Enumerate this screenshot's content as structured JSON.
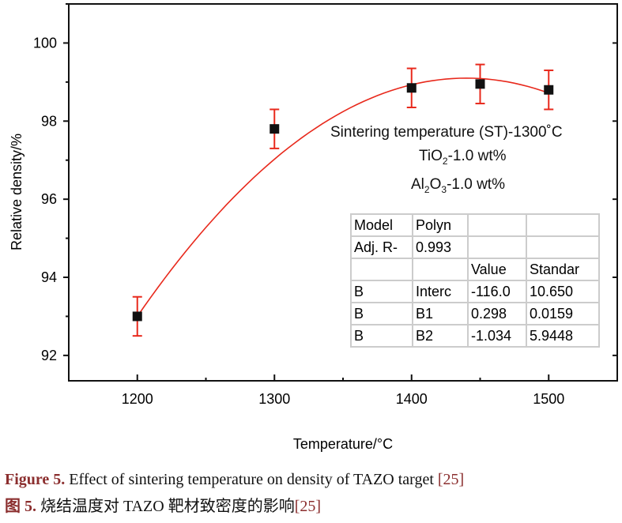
{
  "chart_data": {
    "type": "scatter",
    "xlabel": "Temperature/°C",
    "ylabel": "Relative density/%",
    "xlim": [
      1150,
      1550
    ],
    "ylim": [
      91.35,
      101
    ],
    "xticks": [
      1200,
      1300,
      1400,
      1500
    ],
    "yticks": [
      92,
      94,
      96,
      98,
      100
    ],
    "grid": false,
    "points": [
      {
        "x": 1200,
        "y": 93.0,
        "err": 0.5
      },
      {
        "x": 1300,
        "y": 97.8,
        "err": 0.5
      },
      {
        "x": 1400,
        "y": 98.85,
        "err": 0.5
      },
      {
        "x": 1450,
        "y": 98.95,
        "err": 0.5
      },
      {
        "x": 1500,
        "y": 98.8,
        "err": 0.5
      }
    ],
    "fit": {
      "type": "quadratic",
      "vertex_x": 1440,
      "vertex_y": 99.1,
      "curvature": -0.0001059
    },
    "colors": {
      "points": "#111111",
      "fit": "#e8291c",
      "errorbars": "#e8291c"
    },
    "annotations": {
      "line1": "Sintering temperature (ST)-1300˚C",
      "line2_a": "TiO",
      "line2_sub": "2",
      "line2_b": "-1.0 wt%",
      "line3_a": "Al",
      "line3_sub1": "2",
      "line3_b": "O",
      "line3_sub2": "3",
      "line3_c": "-1.0 wt%"
    },
    "table": [
      [
        "Model",
        "Polyn",
        "",
        ""
      ],
      [
        "Adj. R-",
        "0.993",
        "",
        ""
      ],
      [
        "",
        "",
        "Value",
        "Standar"
      ],
      [
        "B",
        "Interc",
        "-116.0",
        "10.650"
      ],
      [
        "B",
        "B1",
        "0.298",
        "0.0159"
      ],
      [
        "B",
        "B2",
        "-1.034",
        "5.9448"
      ]
    ]
  },
  "caption": {
    "en_label": "Figure 5.",
    "en_text": " Effect of sintering temperature on density of TAZO target ",
    "en_ref": "[25]",
    "zh_label": "图 5.",
    "zh_text": "  烧结温度对 TAZO 靶材致密度的影响",
    "zh_ref": "[25]"
  }
}
